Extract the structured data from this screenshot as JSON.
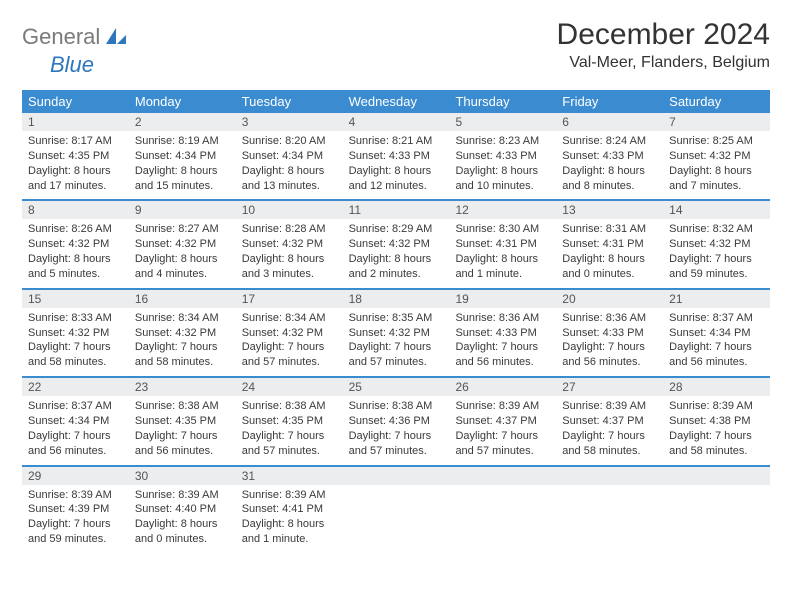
{
  "logo": {
    "word1": "General",
    "word2": "Blue"
  },
  "title": "December 2024",
  "location": "Val-Meer, Flanders, Belgium",
  "colors": {
    "header_bg": "#3b8bd0",
    "header_text": "#ffffff",
    "date_bg": "#ecedee",
    "text": "#3a3a3a",
    "logo_gray": "#7a7a7a",
    "logo_blue": "#2e77bc",
    "page_bg": "#ffffff",
    "week_divider": "#3b8bd0"
  },
  "typography": {
    "title_fontsize": 30,
    "location_fontsize": 16,
    "day_header_fontsize": 13,
    "date_fontsize": 12,
    "info_fontsize": 11
  },
  "day_names": [
    "Sunday",
    "Monday",
    "Tuesday",
    "Wednesday",
    "Thursday",
    "Friday",
    "Saturday"
  ],
  "labels": {
    "sunrise": "Sunrise: ",
    "sunset": "Sunset: ",
    "daylight": "Daylight: "
  },
  "days": [
    {
      "date": 1,
      "sunrise": "8:17 AM",
      "sunset": "4:35 PM",
      "daylight": "8 hours and 17 minutes."
    },
    {
      "date": 2,
      "sunrise": "8:19 AM",
      "sunset": "4:34 PM",
      "daylight": "8 hours and 15 minutes."
    },
    {
      "date": 3,
      "sunrise": "8:20 AM",
      "sunset": "4:34 PM",
      "daylight": "8 hours and 13 minutes."
    },
    {
      "date": 4,
      "sunrise": "8:21 AM",
      "sunset": "4:33 PM",
      "daylight": "8 hours and 12 minutes."
    },
    {
      "date": 5,
      "sunrise": "8:23 AM",
      "sunset": "4:33 PM",
      "daylight": "8 hours and 10 minutes."
    },
    {
      "date": 6,
      "sunrise": "8:24 AM",
      "sunset": "4:33 PM",
      "daylight": "8 hours and 8 minutes."
    },
    {
      "date": 7,
      "sunrise": "8:25 AM",
      "sunset": "4:32 PM",
      "daylight": "8 hours and 7 minutes."
    },
    {
      "date": 8,
      "sunrise": "8:26 AM",
      "sunset": "4:32 PM",
      "daylight": "8 hours and 5 minutes."
    },
    {
      "date": 9,
      "sunrise": "8:27 AM",
      "sunset": "4:32 PM",
      "daylight": "8 hours and 4 minutes."
    },
    {
      "date": 10,
      "sunrise": "8:28 AM",
      "sunset": "4:32 PM",
      "daylight": "8 hours and 3 minutes."
    },
    {
      "date": 11,
      "sunrise": "8:29 AM",
      "sunset": "4:32 PM",
      "daylight": "8 hours and 2 minutes."
    },
    {
      "date": 12,
      "sunrise": "8:30 AM",
      "sunset": "4:31 PM",
      "daylight": "8 hours and 1 minute."
    },
    {
      "date": 13,
      "sunrise": "8:31 AM",
      "sunset": "4:31 PM",
      "daylight": "8 hours and 0 minutes."
    },
    {
      "date": 14,
      "sunrise": "8:32 AM",
      "sunset": "4:32 PM",
      "daylight": "7 hours and 59 minutes."
    },
    {
      "date": 15,
      "sunrise": "8:33 AM",
      "sunset": "4:32 PM",
      "daylight": "7 hours and 58 minutes."
    },
    {
      "date": 16,
      "sunrise": "8:34 AM",
      "sunset": "4:32 PM",
      "daylight": "7 hours and 58 minutes."
    },
    {
      "date": 17,
      "sunrise": "8:34 AM",
      "sunset": "4:32 PM",
      "daylight": "7 hours and 57 minutes."
    },
    {
      "date": 18,
      "sunrise": "8:35 AM",
      "sunset": "4:32 PM",
      "daylight": "7 hours and 57 minutes."
    },
    {
      "date": 19,
      "sunrise": "8:36 AM",
      "sunset": "4:33 PM",
      "daylight": "7 hours and 56 minutes."
    },
    {
      "date": 20,
      "sunrise": "8:36 AM",
      "sunset": "4:33 PM",
      "daylight": "7 hours and 56 minutes."
    },
    {
      "date": 21,
      "sunrise": "8:37 AM",
      "sunset": "4:34 PM",
      "daylight": "7 hours and 56 minutes."
    },
    {
      "date": 22,
      "sunrise": "8:37 AM",
      "sunset": "4:34 PM",
      "daylight": "7 hours and 56 minutes."
    },
    {
      "date": 23,
      "sunrise": "8:38 AM",
      "sunset": "4:35 PM",
      "daylight": "7 hours and 56 minutes."
    },
    {
      "date": 24,
      "sunrise": "8:38 AM",
      "sunset": "4:35 PM",
      "daylight": "7 hours and 57 minutes."
    },
    {
      "date": 25,
      "sunrise": "8:38 AM",
      "sunset": "4:36 PM",
      "daylight": "7 hours and 57 minutes."
    },
    {
      "date": 26,
      "sunrise": "8:39 AM",
      "sunset": "4:37 PM",
      "daylight": "7 hours and 57 minutes."
    },
    {
      "date": 27,
      "sunrise": "8:39 AM",
      "sunset": "4:37 PM",
      "daylight": "7 hours and 58 minutes."
    },
    {
      "date": 28,
      "sunrise": "8:39 AM",
      "sunset": "4:38 PM",
      "daylight": "7 hours and 58 minutes."
    },
    {
      "date": 29,
      "sunrise": "8:39 AM",
      "sunset": "4:39 PM",
      "daylight": "7 hours and 59 minutes."
    },
    {
      "date": 30,
      "sunrise": "8:39 AM",
      "sunset": "4:40 PM",
      "daylight": "8 hours and 0 minutes."
    },
    {
      "date": 31,
      "sunrise": "8:39 AM",
      "sunset": "4:41 PM",
      "daylight": "8 hours and 1 minute."
    }
  ]
}
